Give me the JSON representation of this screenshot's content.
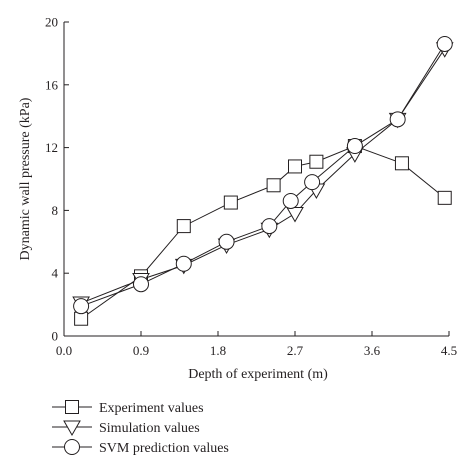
{
  "chart_data": {
    "type": "line",
    "xlabel": "Depth of experiment (m)",
    "ylabel": "Dynamic wall pressure (kPa)",
    "xlim": [
      0.0,
      4.5
    ],
    "ylim": [
      0,
      20
    ],
    "xticks": [
      0.0,
      0.9,
      1.8,
      2.7,
      3.6,
      4.5
    ],
    "xtick_labels": [
      "0.0",
      "0.9",
      "1.8",
      "2.7",
      "3.6",
      "4.5"
    ],
    "yticks": [
      0,
      4,
      8,
      12,
      16,
      20
    ],
    "ytick_labels": [
      "0",
      "4",
      "8",
      "12",
      "16",
      "20"
    ],
    "grid": false,
    "legend_position": "bottom-left, below plot",
    "series": [
      {
        "name": "Experiment values",
        "marker": "square",
        "x": [
          0.2,
          0.9,
          1.4,
          1.95,
          2.45,
          2.7,
          2.95,
          3.4,
          3.95,
          4.45
        ],
        "y": [
          1.1,
          3.8,
          7.0,
          8.5,
          9.6,
          10.8,
          11.1,
          12.1,
          11.0,
          8.8
        ]
      },
      {
        "name": "Simulation values",
        "marker": "triangle-down",
        "x": [
          0.2,
          0.9,
          1.4,
          1.9,
          2.4,
          2.7,
          2.95,
          3.4,
          3.9,
          4.45
        ],
        "y": [
          2.1,
          3.6,
          4.5,
          5.8,
          6.8,
          7.8,
          9.3,
          11.6,
          13.8,
          18.3
        ]
      },
      {
        "name": "SVM prediction values",
        "marker": "circle",
        "x": [
          0.2,
          0.9,
          1.4,
          1.9,
          2.4,
          2.65,
          2.9,
          3.4,
          3.9,
          4.45
        ],
        "y": [
          1.9,
          3.3,
          4.6,
          6.0,
          7.0,
          8.6,
          9.8,
          12.1,
          13.8,
          18.6
        ]
      }
    ]
  }
}
